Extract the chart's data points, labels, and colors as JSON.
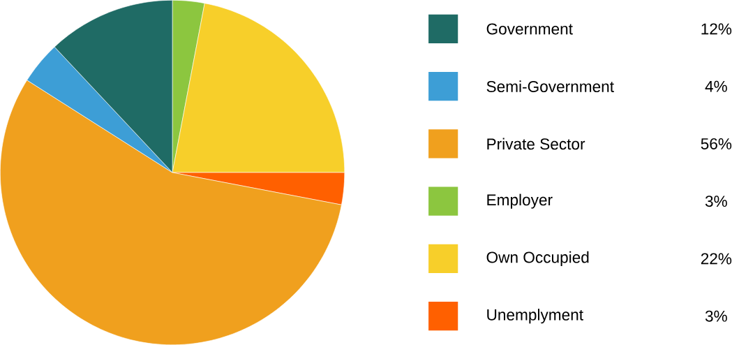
{
  "chart_data": {
    "type": "pie",
    "categories": [
      "Government",
      "Semi-Government",
      "Private Sector",
      "Employer",
      "Own Occupied",
      "Unemplyment"
    ],
    "values": [
      12,
      4,
      56,
      3,
      22,
      3
    ],
    "value_labels": [
      "12%",
      "4%",
      "56%",
      "3%",
      "22%",
      "3%"
    ],
    "colors": [
      "#1f6b65",
      "#3d9ed6",
      "#f0a01e",
      "#8cc63f",
      "#f7cf2a",
      "#ff6000"
    ],
    "legend": "right"
  }
}
